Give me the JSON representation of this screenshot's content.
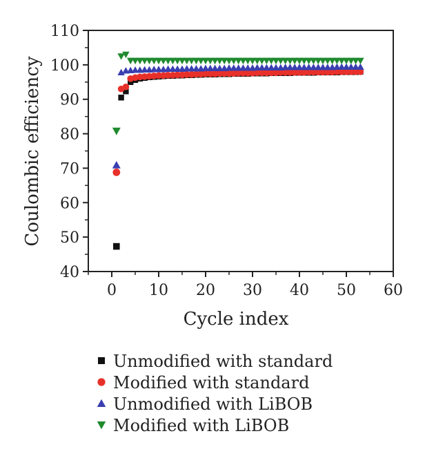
{
  "chart_data": {
    "type": "scatter",
    "title": "",
    "xlabel": "Cycle index",
    "ylabel": "Coulombic efficiency",
    "xlim": [
      -5,
      60
    ],
    "ylim": [
      40,
      110
    ],
    "xticks": [
      0,
      10,
      20,
      30,
      40,
      50,
      60
    ],
    "yticks": [
      40,
      50,
      60,
      70,
      80,
      90,
      100,
      110
    ],
    "grid": false,
    "legend_position": "bottom",
    "series": [
      {
        "name": "Unmodified with standard",
        "marker": "square",
        "color": "#111111",
        "x": [
          1,
          2,
          3,
          4,
          5,
          6,
          7,
          8,
          9,
          10,
          11,
          12,
          13,
          14,
          15,
          16,
          17,
          18,
          19,
          20,
          21,
          22,
          23,
          24,
          25,
          26,
          27,
          28,
          29,
          30,
          31,
          32,
          33,
          34,
          35,
          36,
          37,
          38,
          39,
          40,
          41,
          42,
          43,
          44,
          45,
          46,
          47,
          48,
          49,
          50,
          51,
          52,
          53
        ],
        "y": [
          47.3,
          90.5,
          92.3,
          95.0,
          95.6,
          96.0,
          96.2,
          96.4,
          96.5,
          96.6,
          96.7,
          96.8,
          96.8,
          96.9,
          96.9,
          97.0,
          97.0,
          97.1,
          97.1,
          97.2,
          97.2,
          97.2,
          97.3,
          97.3,
          97.3,
          97.4,
          97.4,
          97.4,
          97.4,
          97.5,
          97.5,
          97.5,
          97.5,
          97.6,
          97.6,
          97.6,
          97.6,
          97.6,
          97.7,
          97.7,
          97.7,
          97.7,
          97.7,
          97.8,
          97.8,
          97.8,
          97.8,
          97.8,
          97.9,
          97.9,
          97.9,
          97.9,
          98.0
        ]
      },
      {
        "name": "Modified with standard",
        "marker": "circle",
        "color": "#e8302a",
        "x": [
          1,
          2,
          3,
          4,
          5,
          6,
          7,
          8,
          9,
          10,
          11,
          12,
          13,
          14,
          15,
          16,
          17,
          18,
          19,
          20,
          21,
          22,
          23,
          24,
          25,
          26,
          27,
          28,
          29,
          30,
          31,
          32,
          33,
          34,
          35,
          36,
          37,
          38,
          39,
          40,
          41,
          42,
          43,
          44,
          45,
          46,
          47,
          48,
          49,
          50,
          51,
          52,
          53
        ],
        "y": [
          68.8,
          93.0,
          93.6,
          96.0,
          96.3,
          96.5,
          96.6,
          96.7,
          96.8,
          96.9,
          96.9,
          97.0,
          97.0,
          97.1,
          97.1,
          97.2,
          97.2,
          97.3,
          97.3,
          97.4,
          97.4,
          97.4,
          97.5,
          97.5,
          97.5,
          97.5,
          97.6,
          97.6,
          97.6,
          97.6,
          97.7,
          97.7,
          97.7,
          97.7,
          97.7,
          97.8,
          97.8,
          97.8,
          97.8,
          97.8,
          97.8,
          97.9,
          97.9,
          97.9,
          97.9,
          97.9,
          97.9,
          98.0,
          98.0,
          98.0,
          98.0,
          98.0,
          98.0
        ]
      },
      {
        "name": "Unmodified with LiBOB",
        "marker": "triangle-up",
        "color": "#3a3fb0",
        "x": [
          1,
          2,
          3,
          4,
          5,
          6,
          7,
          8,
          9,
          10,
          11,
          12,
          13,
          14,
          15,
          16,
          17,
          18,
          19,
          20,
          21,
          22,
          23,
          24,
          25,
          26,
          27,
          28,
          29,
          30,
          31,
          32,
          33,
          34,
          35,
          36,
          37,
          38,
          39,
          40,
          41,
          42,
          43,
          44,
          45,
          46,
          47,
          48,
          49,
          50,
          51,
          52,
          53
        ],
        "y": [
          70.9,
          97.8,
          98.3,
          98.4,
          98.5,
          98.5,
          98.6,
          98.6,
          98.7,
          98.7,
          98.7,
          98.8,
          98.8,
          98.8,
          98.8,
          98.9,
          98.9,
          98.9,
          98.9,
          99.0,
          99.0,
          99.0,
          99.0,
          99.0,
          99.1,
          99.1,
          99.1,
          99.1,
          99.1,
          99.1,
          99.2,
          99.2,
          99.2,
          99.2,
          99.2,
          99.2,
          99.3,
          99.3,
          99.3,
          99.3,
          99.3,
          99.3,
          99.3,
          99.3,
          99.3,
          99.3,
          99.3,
          99.4,
          99.4,
          99.4,
          99.4,
          99.4,
          99.4
        ]
      },
      {
        "name": "Modified with LiBOB",
        "marker": "triangle-down",
        "color": "#1f8a2e",
        "x": [
          1,
          2,
          3,
          4,
          5,
          6,
          7,
          8,
          9,
          10,
          11,
          12,
          13,
          14,
          15,
          16,
          17,
          18,
          19,
          20,
          21,
          22,
          23,
          24,
          25,
          26,
          27,
          28,
          29,
          30,
          31,
          32,
          33,
          34,
          35,
          36,
          37,
          38,
          39,
          40,
          41,
          42,
          43,
          44,
          45,
          46,
          47,
          48,
          49,
          50,
          51,
          52,
          53
        ],
        "y": [
          80.8,
          102.5,
          103.0,
          101.2,
          101.2,
          101.2,
          101.2,
          101.2,
          101.2,
          101.2,
          101.2,
          101.2,
          101.2,
          101.2,
          101.2,
          101.2,
          101.2,
          101.2,
          101.2,
          101.2,
          101.2,
          101.2,
          101.2,
          101.2,
          101.2,
          101.2,
          101.2,
          101.2,
          101.2,
          101.2,
          101.2,
          101.2,
          101.2,
          101.2,
          101.2,
          101.2,
          101.2,
          101.2,
          101.2,
          101.2,
          101.2,
          101.2,
          101.2,
          101.2,
          101.2,
          101.2,
          101.2,
          101.2,
          101.2,
          101.2,
          101.2,
          101.2,
          101.2
        ]
      }
    ]
  }
}
